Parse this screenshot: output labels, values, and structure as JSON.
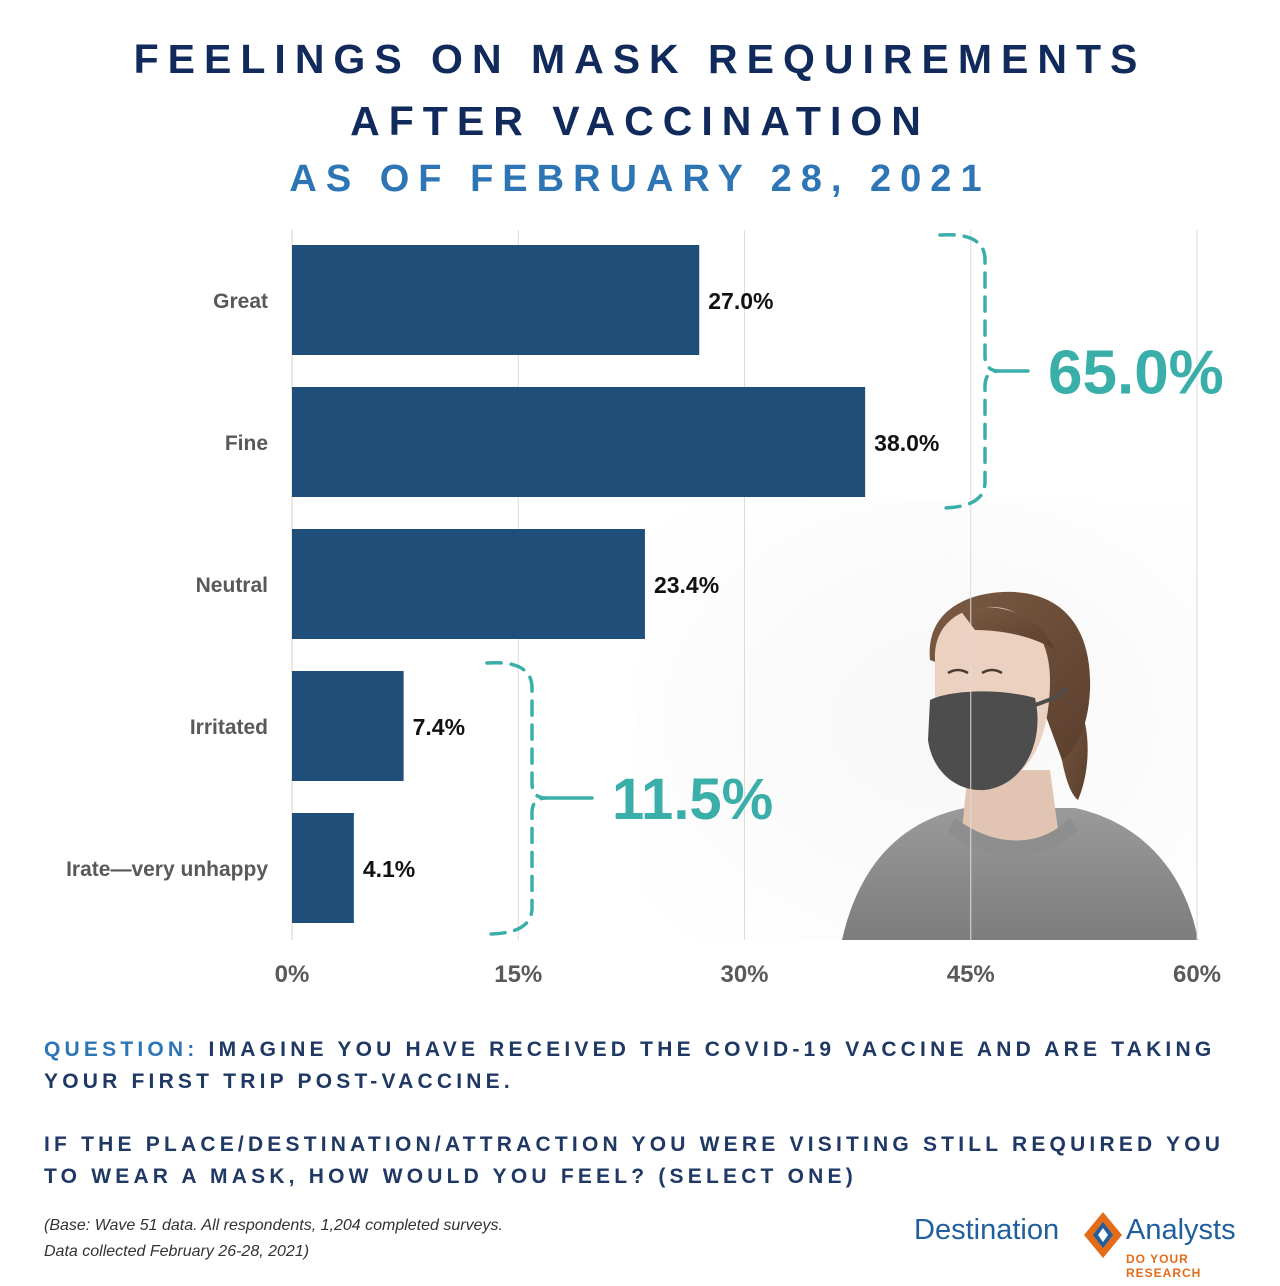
{
  "title": {
    "line1": "FEELINGS ON MASK REQUIREMENTS",
    "line2": "AFTER VACCINATION",
    "subtitle": "AS OF FEBRUARY 28, 2021"
  },
  "colors": {
    "title": "#102a5c",
    "subtitle": "#2e75b6",
    "bar": "#1f4e79",
    "bracket": "#3aaea8",
    "logo_blue": "#1f5f9e",
    "logo_orange": "#e36c1b"
  },
  "chart_data": {
    "type": "bar",
    "orientation": "horizontal",
    "categories": [
      "Great",
      "Fine",
      "Neutral",
      "Irritated",
      "Irate—very unhappy"
    ],
    "values": [
      27.0,
      38.0,
      23.4,
      7.4,
      4.1
    ],
    "data_labels": [
      "27.0%",
      "38.0%",
      "23.4%",
      "7.4%",
      "4.1%"
    ],
    "xlim": [
      0,
      60
    ],
    "x_ticks": [
      0,
      15,
      30,
      45,
      60
    ],
    "x_tick_labels": [
      "0%",
      "15%",
      "30%",
      "45%",
      "60%"
    ],
    "grid": true,
    "legend": "none",
    "annotations": [
      {
        "label": "65.0%",
        "groups": [
          "Great",
          "Fine"
        ]
      },
      {
        "label": "11.5%",
        "groups": [
          "Irritated",
          "Irate—very unhappy"
        ]
      }
    ]
  },
  "image": {
    "icon": "woman-wearing-mask-photo"
  },
  "question": {
    "label": "QUESTION:",
    "part1": "IMAGINE YOU HAVE RECEIVED THE COVID-19 VACCINE AND ARE TAKING YOUR FIRST TRIP POST-VACCINE.",
    "part2": "IF THE PLACE/DESTINATION/ATTRACTION YOU WERE VISITING STILL REQUIRED YOU TO WEAR A MASK, HOW WOULD YOU FEEL? (SELECT ONE)"
  },
  "footnote": {
    "line1": "(Base: Wave 51 data. All respondents, 1,204 completed surveys.",
    "line2": "Data collected February 26-28, 2021)"
  },
  "logo": {
    "word1": "Destination",
    "word2": "Analysts",
    "tagline": "DO YOUR RESEARCH",
    "icon": "diamond-logo-icon"
  }
}
